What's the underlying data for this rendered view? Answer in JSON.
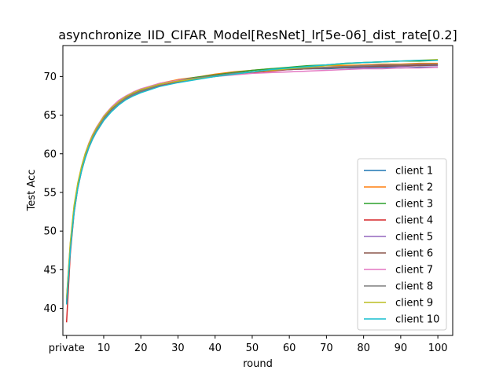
{
  "chart_data": {
    "type": "line",
    "title": "asynchronize_IID_CIFAR_Model[ResNet]_lr[5e-06]_dist_rate[0.2]",
    "xlabel": "round",
    "ylabel": "Test Acc",
    "xlim": [
      -1,
      104
    ],
    "ylim": [
      36.5,
      74
    ],
    "xticks": [
      {
        "value": 0,
        "label": "private"
      },
      {
        "value": 10,
        "label": "10"
      },
      {
        "value": 20,
        "label": "20"
      },
      {
        "value": 30,
        "label": "30"
      },
      {
        "value": 40,
        "label": "40"
      },
      {
        "value": 50,
        "label": "50"
      },
      {
        "value": 60,
        "label": "60"
      },
      {
        "value": 70,
        "label": "70"
      },
      {
        "value": 80,
        "label": "80"
      },
      {
        "value": 90,
        "label": "90"
      },
      {
        "value": 100,
        "label": "100"
      }
    ],
    "yticks": [
      {
        "value": 40,
        "label": "40"
      },
      {
        "value": 45,
        "label": "45"
      },
      {
        "value": 50,
        "label": "50"
      },
      {
        "value": 55,
        "label": "55"
      },
      {
        "value": 60,
        "label": "60"
      },
      {
        "value": 65,
        "label": "65"
      },
      {
        "value": 70,
        "label": "70"
      }
    ],
    "grid": false,
    "legend_position": "lower-right",
    "x": [
      0,
      1,
      2,
      3,
      4,
      5,
      6,
      7,
      8,
      10,
      12,
      14,
      16,
      18,
      20,
      25,
      30,
      35,
      40,
      45,
      50,
      55,
      60,
      65,
      70,
      75,
      80,
      85,
      90,
      95,
      100
    ],
    "series": [
      {
        "name": "client 1",
        "color": "#1f77b4",
        "values": [
          40.8,
          47.5,
          52.5,
          55.6,
          57.8,
          59.5,
          60.9,
          62.0,
          62.9,
          64.4,
          65.6,
          66.5,
          67.2,
          67.7,
          68.1,
          68.9,
          69.4,
          69.8,
          70.1,
          70.4,
          70.6,
          70.8,
          70.9,
          71.0,
          71.0,
          71.1,
          71.1,
          71.2,
          71.1,
          71.2,
          71.2
        ]
      },
      {
        "name": "client 2",
        "color": "#ff7f0e",
        "values": [
          41.2,
          48.2,
          53.0,
          56.0,
          58.1,
          59.8,
          61.2,
          62.3,
          63.2,
          64.7,
          65.8,
          66.7,
          67.4,
          67.9,
          68.3,
          69.1,
          69.6,
          69.9,
          70.3,
          70.6,
          70.8,
          71.0,
          71.1,
          71.2,
          71.4,
          71.4,
          71.5,
          71.6,
          71.6,
          71.7,
          71.7
        ]
      },
      {
        "name": "client 3",
        "color": "#2ca02c",
        "values": [
          40.9,
          47.9,
          52.8,
          55.8,
          58.0,
          59.7,
          61.1,
          62.2,
          63.1,
          64.6,
          65.7,
          66.6,
          67.3,
          67.8,
          68.2,
          69.0,
          69.5,
          69.9,
          70.2,
          70.5,
          70.8,
          71.0,
          71.2,
          71.4,
          71.5,
          71.7,
          71.8,
          71.9,
          72.0,
          72.0,
          72.1
        ]
      },
      {
        "name": "client 4",
        "color": "#d62728",
        "values": [
          38.2,
          47.0,
          52.3,
          55.5,
          57.7,
          59.4,
          60.8,
          61.9,
          62.8,
          64.3,
          65.5,
          66.4,
          67.1,
          67.6,
          68.0,
          68.8,
          69.3,
          69.7,
          70.0,
          70.3,
          70.5,
          70.7,
          70.9,
          71.0,
          71.1,
          71.2,
          71.3,
          71.4,
          71.4,
          71.5,
          71.5
        ]
      },
      {
        "name": "client 5",
        "color": "#9467bd",
        "values": [
          40.6,
          47.6,
          52.6,
          55.7,
          57.9,
          59.6,
          61.0,
          62.1,
          63.0,
          64.5,
          65.6,
          66.5,
          67.2,
          67.7,
          68.1,
          68.9,
          69.4,
          69.8,
          70.1,
          70.4,
          70.6,
          70.8,
          70.9,
          71.0,
          71.1,
          71.2,
          71.2,
          71.3,
          71.3,
          71.4,
          71.4
        ]
      },
      {
        "name": "client 6",
        "color": "#8c564b",
        "values": [
          40.7,
          47.8,
          52.7,
          55.8,
          58.0,
          59.7,
          61.1,
          62.2,
          63.1,
          64.6,
          65.7,
          66.6,
          67.3,
          67.8,
          68.2,
          69.0,
          69.5,
          69.8,
          70.1,
          70.4,
          70.6,
          70.8,
          70.9,
          71.0,
          71.1,
          71.2,
          71.3,
          71.3,
          71.4,
          71.4,
          71.5
        ]
      },
      {
        "name": "client 7",
        "color": "#e377c2",
        "values": [
          41.0,
          48.3,
          53.1,
          56.1,
          58.3,
          60.0,
          61.4,
          62.5,
          63.4,
          64.9,
          66.0,
          66.9,
          67.5,
          68.0,
          68.4,
          69.1,
          69.5,
          69.8,
          70.0,
          70.2,
          70.4,
          70.5,
          70.6,
          70.7,
          70.8,
          70.9,
          71.0,
          71.0,
          71.1,
          71.1,
          71.2
        ]
      },
      {
        "name": "client 8",
        "color": "#7f7f7f",
        "values": [
          40.8,
          47.7,
          52.6,
          55.7,
          57.9,
          59.6,
          61.0,
          62.1,
          63.0,
          64.5,
          65.6,
          66.5,
          67.2,
          67.7,
          68.1,
          68.9,
          69.4,
          69.8,
          70.1,
          70.4,
          70.6,
          70.8,
          71.0,
          71.1,
          71.2,
          71.3,
          71.4,
          71.5,
          71.5,
          71.6,
          71.6
        ]
      },
      {
        "name": "client 9",
        "color": "#bcbd22",
        "values": [
          41.3,
          48.5,
          53.3,
          56.2,
          58.3,
          60.0,
          61.3,
          62.4,
          63.3,
          64.8,
          65.9,
          66.7,
          67.4,
          67.9,
          68.3,
          69.0,
          69.4,
          69.7,
          70.0,
          70.3,
          70.6,
          70.8,
          71.0,
          71.2,
          71.4,
          71.6,
          71.8,
          71.9,
          72.0,
          72.1,
          72.2
        ]
      },
      {
        "name": "client 10",
        "color": "#17becf",
        "values": [
          40.5,
          47.4,
          52.4,
          55.5,
          57.7,
          59.4,
          60.8,
          61.9,
          62.8,
          64.3,
          65.4,
          66.3,
          67.0,
          67.5,
          67.9,
          68.7,
          69.2,
          69.6,
          70.0,
          70.3,
          70.6,
          70.9,
          71.1,
          71.3,
          71.5,
          71.7,
          71.8,
          71.9,
          72.0,
          72.1,
          72.1
        ]
      }
    ]
  }
}
